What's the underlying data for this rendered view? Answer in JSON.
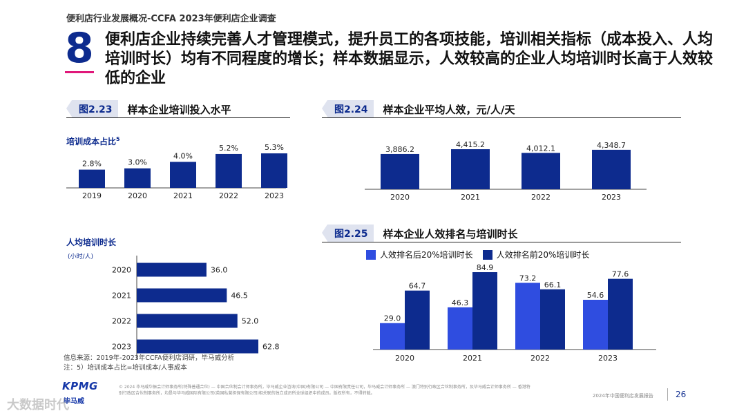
{
  "header": {
    "top_source": "便利店行业发展概况-CCFA 2023年便利店企业调查",
    "number": "8",
    "headline": "便利店企业持续完善人才管理模式，提升员工的各项技能，培训相关指标（成本投入、人均培训时长）均有不同程度的增长；样本数据显示，人效较高的企业人均培训时长高于人效较低的企业"
  },
  "sections": {
    "s223": {
      "tag": "图2.23",
      "title": "样本企业培训投入水平"
    },
    "s224": {
      "tag": "图2.24",
      "title": "样本企业平均人效，元/人/天"
    },
    "s225": {
      "tag": "图2.25",
      "title": "样本企业人效排名与培训时长"
    }
  },
  "labels": {
    "cost_ratio": "培训成本占比",
    "cost_ratio_sup": "5",
    "hours_title": "人均培训时长",
    "hours_unit": "(小时/人)"
  },
  "colors": {
    "navy": "#0d2b8e",
    "blue": "#2f4de0",
    "accent": "#e0187a"
  },
  "chart_data": [
    {
      "id": "cost_ratio",
      "type": "bar",
      "categories": [
        "2019",
        "2020",
        "2021",
        "2022",
        "2023"
      ],
      "values": [
        2.8,
        3.0,
        4.0,
        5.2,
        5.3
      ],
      "value_labels": [
        "2.8%",
        "3.0%",
        "4.0%",
        "5.2%",
        "5.3%"
      ],
      "title": "培训成本占比",
      "ylim": [
        0,
        5.3
      ]
    },
    {
      "id": "hours_per_person",
      "type": "bar",
      "orientation": "horizontal",
      "categories": [
        "2020",
        "2021",
        "2022",
        "2023"
      ],
      "values": [
        36.0,
        46.5,
        52.0,
        62.8
      ],
      "value_labels": [
        "36.0",
        "46.5",
        "52.0",
        "62.8"
      ],
      "title": "人均培训时长",
      "unit": "(小时/人)",
      "xlim": [
        0,
        62.8
      ]
    },
    {
      "id": "avg_efficiency",
      "type": "bar",
      "categories": [
        "2020",
        "2021",
        "2022",
        "2023"
      ],
      "values": [
        3886.2,
        4415.2,
        4012.1,
        4348.7
      ],
      "value_labels": [
        "3,886.2",
        "4,415.2",
        "4,012.1",
        "4,348.7"
      ],
      "title": "样本企业平均人效，元/人/天",
      "ylim": [
        0,
        4415.2
      ]
    },
    {
      "id": "efficiency_rank_hours",
      "type": "bar",
      "categories": [
        "2020",
        "2021",
        "2022",
        "2023"
      ],
      "series": [
        {
          "name": "人效排名后20%培训时长",
          "values": [
            29.0,
            46.3,
            73.2,
            54.6
          ],
          "value_labels": [
            "29.0",
            "46.3",
            "73.2",
            "54.6"
          ],
          "color": "#2f4de0"
        },
        {
          "name": "人效排名前20%培训时长",
          "values": [
            64.7,
            84.9,
            66.1,
            77.6
          ],
          "value_labels": [
            "64.7",
            "84.9",
            "66.1",
            "77.6"
          ],
          "color": "#0d2b8e"
        }
      ],
      "title": "样本企业人效排名与培训时长",
      "ylim": [
        0,
        84.9
      ]
    }
  ],
  "footer": {
    "source": "信息来源：2019年-2023年CCFA便利店调研，毕马威分析",
    "note": "注：5）培训成本占比=培训成本/人事成本",
    "logo": "KPMG",
    "logo_sub": "毕马威",
    "legal": "© 2024 毕马威华振会计师事务所(特殊普通合伙) — 中国合伙制会计师事务所，毕马威企业咨询(中国)有限公司 — 中国有限责任公司，毕马威会计师事务所 — 澳门特别行政区合伙制事务所，及毕马威会计师事务所 — 香港特别行政区合伙制事务所，均是与毕马威国际有限公司(英国私营担保有限公司)相关联的独立成员所全球组织中的成员。版权所有，不得转载。",
    "report_name": "2024年中国便利店发展报告",
    "page": "26",
    "watermark": "大数据时代"
  }
}
